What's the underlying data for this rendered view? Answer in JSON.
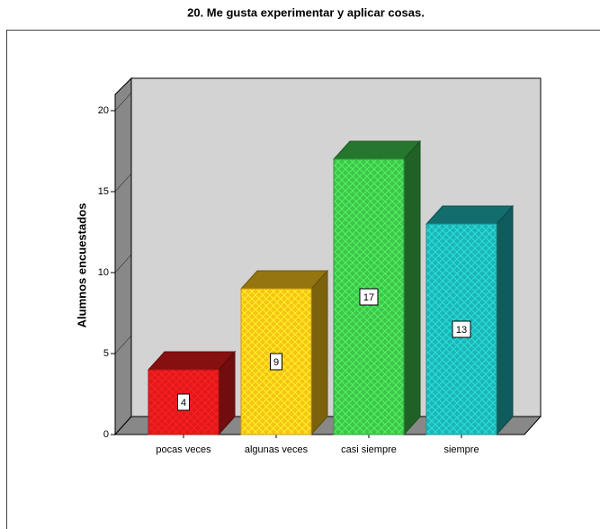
{
  "chart_data": {
    "type": "bar3d",
    "title": "20. Me gusta experimentar y aplicar cosas.",
    "y_label": "Alumnos encuestados",
    "categories": [
      "pocas veces",
      "algunas veces",
      "casi siempre",
      "siempre"
    ],
    "values": [
      4,
      9,
      17,
      13
    ],
    "colors": [
      "#e0191b",
      "#f7c319",
      "#3fc44c",
      "#1fb5b5"
    ],
    "ylim": [
      0,
      21
    ],
    "yticks": [
      0,
      5,
      10,
      15,
      20
    ]
  }
}
